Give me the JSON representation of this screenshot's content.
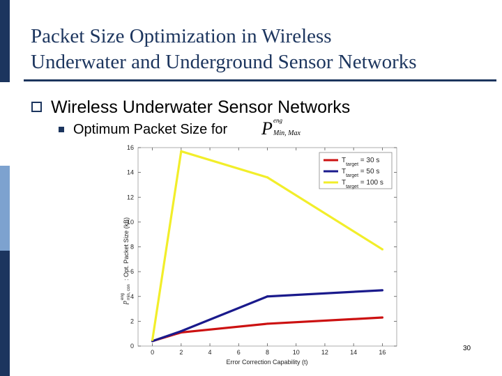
{
  "slide": {
    "title_line1": "Packet Size Optimization in Wireless",
    "title_line2": "Underwater and Underground Sensor Networks",
    "bullet1": "Wireless Underwater Sensor Networks",
    "bullet2": "Optimum Packet Size for",
    "math_base": "P",
    "math_sup": "eng",
    "math_sub": "Min, Max",
    "page_number": "30",
    "colors": {
      "title": "#1c355e",
      "accent_dark": "#1c355e",
      "accent_light": "#7da2cf"
    }
  },
  "chart_data": {
    "type": "line",
    "xlabel": "Error Correction Capability (t)",
    "ylabel": "Opt. Packet Size (kB)",
    "ylabel_symbol_base": "p",
    "ylabel_symbol_sup": "eng",
    "ylabel_symbol_sub": "min, con",
    "xlim": [
      -1,
      17
    ],
    "ylim": [
      0,
      16
    ],
    "xticks": [
      0,
      2,
      4,
      6,
      8,
      10,
      12,
      14,
      16
    ],
    "yticks": [
      0,
      2,
      4,
      6,
      8,
      10,
      12,
      14,
      16
    ],
    "legend_placement": "top-right",
    "series": [
      {
        "name": "T",
        "name_sub": "target",
        "name_suffix": " = 30 s",
        "color": "#cc1111",
        "x": [
          0,
          2,
          8,
          16
        ],
        "y": [
          0.4,
          1.1,
          1.8,
          2.3
        ]
      },
      {
        "name": "T",
        "name_sub": "target",
        "name_suffix": " = 50 s",
        "color": "#1a1a8c",
        "x": [
          0,
          2,
          8,
          16
        ],
        "y": [
          0.4,
          1.2,
          4.0,
          4.5
        ]
      },
      {
        "name": "T",
        "name_sub": "target",
        "name_suffix": " = 100 s",
        "color": "#f2ee2a",
        "x": [
          0,
          2,
          8,
          16
        ],
        "y": [
          0.5,
          15.7,
          13.6,
          7.8
        ]
      }
    ]
  }
}
